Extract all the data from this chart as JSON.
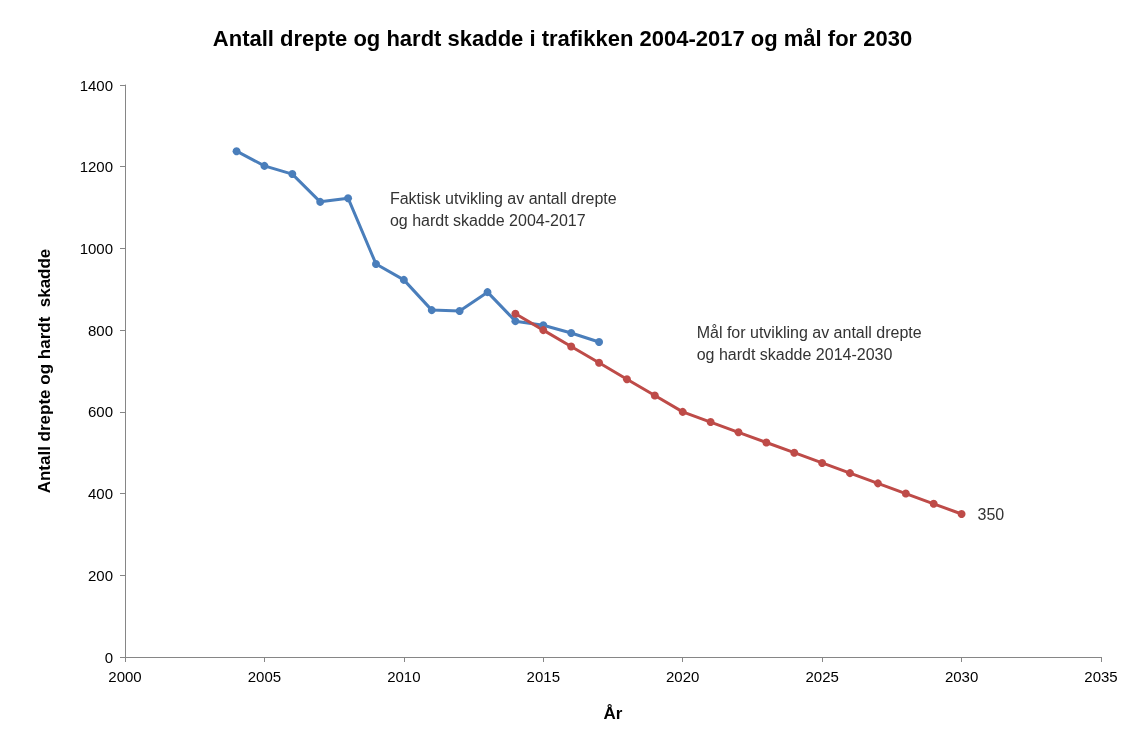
{
  "chart_data": {
    "type": "line",
    "title": "Antall drepte og hardt skadde i trafikken 2004-2017 og mål for 2030",
    "xlabel": "År",
    "ylabel": "Antall drepte og hardt  skadde",
    "xlim": [
      2000,
      2035
    ],
    "xticks": [
      2000,
      2005,
      2010,
      2015,
      2020,
      2025,
      2030,
      2035
    ],
    "ylim": [
      0,
      1400
    ],
    "yticks": [
      0,
      200,
      400,
      600,
      800,
      1000,
      1200,
      1400
    ],
    "grid": false,
    "legend": false,
    "marker": "circle",
    "line_style": "solid",
    "series": [
      {
        "name": "Faktisk utvikling av antall drepte\nog hardt skadde 2004-2017",
        "color": "#4a7ebb",
        "x": [
          2004,
          2005,
          2006,
          2007,
          2008,
          2009,
          2010,
          2011,
          2012,
          2013,
          2014,
          2015,
          2016,
          2017
        ],
        "values": [
          1238,
          1202,
          1182,
          1114,
          1123,
          962,
          923,
          849,
          847,
          893,
          822,
          812,
          793,
          771
        ]
      },
      {
        "name": "Mål for utvikling av antall drepte\nog hardt skadde 2014-2030",
        "color": "#be4b48",
        "x": [
          2014,
          2015,
          2016,
          2017,
          2018,
          2019,
          2020,
          2021,
          2022,
          2023,
          2024,
          2025,
          2026,
          2027,
          2028,
          2029,
          2030
        ],
        "values": [
          840,
          800,
          760,
          720,
          680,
          640,
          600,
          575,
          550,
          525,
          500,
          475,
          450,
          425,
          400,
          375,
          350
        ]
      }
    ],
    "annotations": [
      {
        "text": "350",
        "x": 2030,
        "y": 350
      }
    ]
  }
}
